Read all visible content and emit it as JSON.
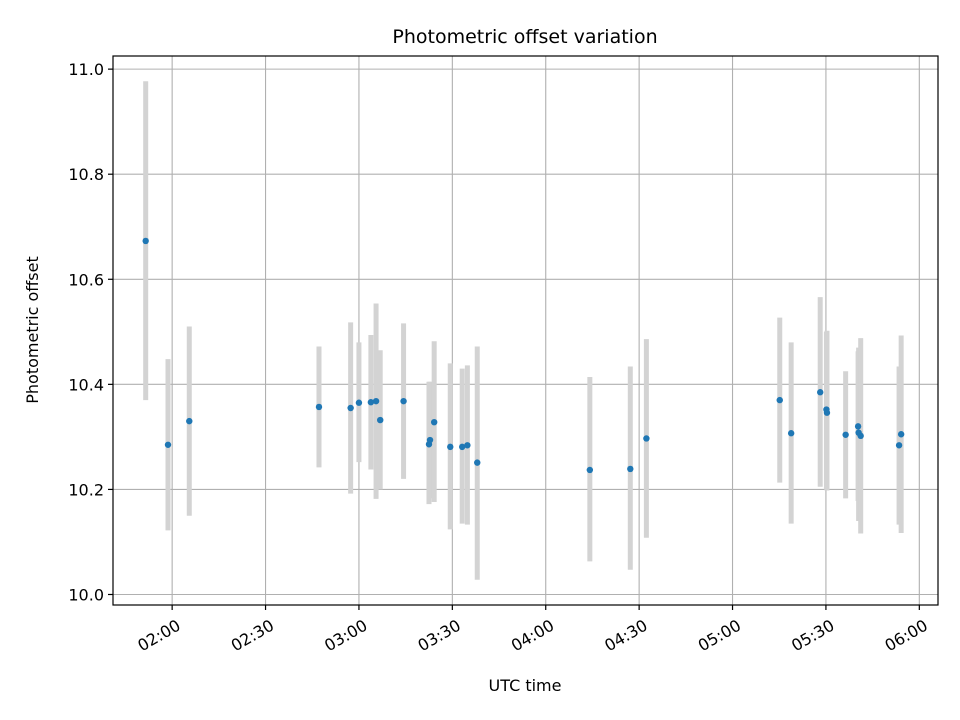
{
  "chart_data": {
    "type": "scatter",
    "title": "Photometric offset variation",
    "xlabel": "UTC time",
    "ylabel": "Photometric offset",
    "grid": true,
    "xlim": [
      "01:41",
      "06:06"
    ],
    "ylim": [
      9.98,
      11.025
    ],
    "xticks": [
      "02:00",
      "02:30",
      "03:00",
      "03:30",
      "04:00",
      "04:30",
      "05:00",
      "05:30",
      "06:00"
    ],
    "yticks": [
      "10.0",
      "10.2",
      "10.4",
      "10.6",
      "10.8",
      "11.0"
    ],
    "colors": {
      "points": "#1f77b4",
      "error_bars": "#d3d3d3"
    },
    "points": [
      {
        "t": "01:51:30",
        "y": 10.673,
        "ylow": 10.37,
        "yhigh": 10.977
      },
      {
        "t": "01:58:40",
        "y": 10.285,
        "ylow": 10.122,
        "yhigh": 10.448
      },
      {
        "t": "02:05:30",
        "y": 10.33,
        "ylow": 10.15,
        "yhigh": 10.51
      },
      {
        "t": "02:47:10",
        "y": 10.357,
        "ylow": 10.242,
        "yhigh": 10.472
      },
      {
        "t": "02:57:20",
        "y": 10.355,
        "ylow": 10.192,
        "yhigh": 10.518
      },
      {
        "t": "03:00:00",
        "y": 10.365,
        "ylow": 10.252,
        "yhigh": 10.48
      },
      {
        "t": "03:03:50",
        "y": 10.366,
        "ylow": 10.238,
        "yhigh": 10.494
      },
      {
        "t": "03:05:30",
        "y": 10.368,
        "ylow": 10.182,
        "yhigh": 10.554
      },
      {
        "t": "03:06:50",
        "y": 10.332,
        "ylow": 10.2,
        "yhigh": 10.465
      },
      {
        "t": "03:14:20",
        "y": 10.368,
        "ylow": 10.22,
        "yhigh": 10.516
      },
      {
        "t": "03:22:30",
        "y": 10.286,
        "ylow": 10.172,
        "yhigh": 10.405
      },
      {
        "t": "03:22:50",
        "y": 10.294,
        "ylow": 10.183,
        "yhigh": 10.405
      },
      {
        "t": "03:24:10",
        "y": 10.328,
        "ylow": 10.176,
        "yhigh": 10.482
      },
      {
        "t": "03:29:20",
        "y": 10.281,
        "ylow": 10.124,
        "yhigh": 10.44
      },
      {
        "t": "03:33:10",
        "y": 10.281,
        "ylow": 10.135,
        "yhigh": 10.43
      },
      {
        "t": "03:34:50",
        "y": 10.284,
        "ylow": 10.133,
        "yhigh": 10.436
      },
      {
        "t": "03:38:00",
        "y": 10.251,
        "ylow": 10.028,
        "yhigh": 10.472
      },
      {
        "t": "04:14:10",
        "y": 10.237,
        "ylow": 10.063,
        "yhigh": 10.414
      },
      {
        "t": "04:27:10",
        "y": 10.239,
        "ylow": 10.047,
        "yhigh": 10.434
      },
      {
        "t": "04:32:20",
        "y": 10.297,
        "ylow": 10.108,
        "yhigh": 10.486
      },
      {
        "t": "05:15:10",
        "y": 10.37,
        "ylow": 10.213,
        "yhigh": 10.527
      },
      {
        "t": "05:18:50",
        "y": 10.307,
        "ylow": 10.135,
        "yhigh": 10.48
      },
      {
        "t": "05:28:10",
        "y": 10.385,
        "ylow": 10.205,
        "yhigh": 10.566
      },
      {
        "t": "05:30:10",
        "y": 10.352,
        "ylow": 10.2,
        "yhigh": 10.5
      },
      {
        "t": "05:30:20",
        "y": 10.346,
        "ylow": 10.198,
        "yhigh": 10.502
      },
      {
        "t": "05:36:20",
        "y": 10.304,
        "ylow": 10.183,
        "yhigh": 10.425
      },
      {
        "t": "05:40:20",
        "y": 10.32,
        "ylow": 10.178,
        "yhigh": 10.463
      },
      {
        "t": "05:40:30",
        "y": 10.308,
        "ylow": 10.14,
        "yhigh": 10.47
      },
      {
        "t": "05:41:10",
        "y": 10.302,
        "ylow": 10.116,
        "yhigh": 10.488
      },
      {
        "t": "05:53:30",
        "y": 10.284,
        "ylow": 10.133,
        "yhigh": 10.434
      },
      {
        "t": "05:54:10",
        "y": 10.305,
        "ylow": 10.117,
        "yhigh": 10.493
      }
    ]
  }
}
